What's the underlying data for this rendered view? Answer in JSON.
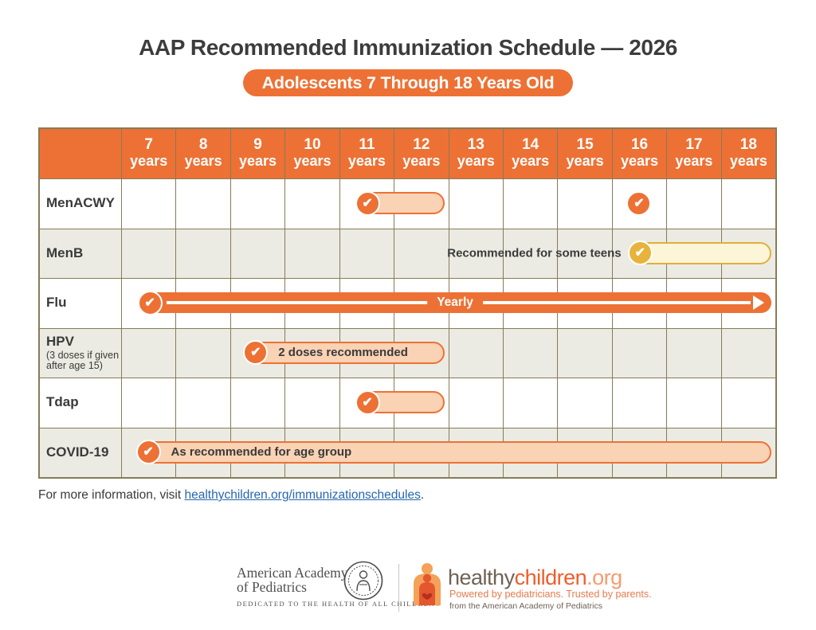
{
  "title": "AAP Recommended Immunization Schedule — 2026",
  "subtitle": "Adolescents 7 Through 18 Years Old",
  "colors": {
    "accent_orange": "#ED7134",
    "pill_fill_orange": "#FAD2B4",
    "pill_fill_yellow": "#FDF5D7",
    "pill_border_yellow": "#E0AF3D",
    "check_yellow": "#E7B33C",
    "row_alt": "#EBEBE3",
    "grid_line": "#877B59",
    "text_dark": "#3A3A3A",
    "link_blue": "#2666AF",
    "hc_brown": "#6F6256",
    "hc_orange": "#F15C2C"
  },
  "schedule": {
    "columns": [
      {
        "num": "7",
        "unit": "years"
      },
      {
        "num": "8",
        "unit": "years"
      },
      {
        "num": "9",
        "unit": "years"
      },
      {
        "num": "10",
        "unit": "years"
      },
      {
        "num": "11",
        "unit": "years"
      },
      {
        "num": "12",
        "unit": "years"
      },
      {
        "num": "13",
        "unit": "years"
      },
      {
        "num": "14",
        "unit": "years"
      },
      {
        "num": "15",
        "unit": "years"
      },
      {
        "num": "16",
        "unit": "years"
      },
      {
        "num": "17",
        "unit": "years"
      },
      {
        "num": "18",
        "unit": "years"
      }
    ],
    "rows": [
      {
        "label": "MenACWY",
        "sub": "",
        "alt": false
      },
      {
        "label": "MenB",
        "sub": "",
        "alt": true
      },
      {
        "label": "Flu",
        "sub": "",
        "alt": false
      },
      {
        "label": "HPV",
        "sub": "(3 doses if given after age 15)",
        "alt": true
      },
      {
        "label": "Tdap",
        "sub": "",
        "alt": false
      },
      {
        "label": "COVID-19",
        "sub": "",
        "alt": true
      }
    ],
    "markers": [
      {
        "name": "menacwy-dose-pill",
        "row": 0,
        "type": "pill",
        "from": 11.32,
        "to": 12.93,
        "style": "orange",
        "text": ""
      },
      {
        "name": "menacwy-16yr-check",
        "row": 0,
        "type": "check",
        "at": 16.5,
        "style": "orange"
      },
      {
        "name": "menb-pill",
        "row": 1,
        "type": "pill",
        "from": 16.32,
        "to": 18.92,
        "style": "yellow",
        "text": "",
        "pre_text": "Recommended for some teens"
      },
      {
        "name": "flu-yearly-bar",
        "row": 2,
        "type": "arrow",
        "from": 7.33,
        "to": 18.92,
        "label": "Yearly"
      },
      {
        "name": "hpv-pill",
        "row": 3,
        "type": "pill",
        "from": 9.27,
        "to": 12.93,
        "style": "orange",
        "text": "2 doses recommended"
      },
      {
        "name": "tdap-pill",
        "row": 4,
        "type": "pill",
        "from": 11.32,
        "to": 12.93,
        "style": "orange",
        "text": ""
      },
      {
        "name": "covid-pill",
        "row": 5,
        "type": "pill",
        "from": 7.3,
        "to": 18.92,
        "style": "orange",
        "text": "As recommended for age group"
      }
    ]
  },
  "footer": {
    "text": "For more information, visit ",
    "link": "healthychildren.org/immunizationschedules",
    "suffix": "."
  },
  "logos": {
    "aap_line1": "American Academy",
    "aap_line2": "of Pediatrics",
    "aap_tagline": "DEDICATED TO THE HEALTH OF ALL CHILDREN®",
    "hc_part1": "healthy",
    "hc_part2": "children",
    "hc_part3": ".org",
    "hc_tagline": "Powered by pediatricians. Trusted by parents.",
    "hc_sub": "from the American Academy of Pediatrics"
  },
  "chart_data": {
    "type": "table",
    "title": "AAP Recommended Immunization Schedule — 2026",
    "subtitle": "Adolescents 7 Through 18 Years Old",
    "x_categories": [
      "7 years",
      "8 years",
      "9 years",
      "10 years",
      "11 years",
      "12 years",
      "13 years",
      "14 years",
      "15 years",
      "16 years",
      "17 years",
      "18 years"
    ],
    "rows": [
      {
        "vaccine": "MenACWY",
        "recommendations": [
          {
            "ages": "11-12",
            "marker": "check-pill"
          },
          {
            "ages": "16",
            "marker": "check"
          }
        ]
      },
      {
        "vaccine": "MenB",
        "recommendations": [
          {
            "ages": "16-18",
            "marker": "check-pill-yellow",
            "note": "Recommended for some teens"
          }
        ]
      },
      {
        "vaccine": "Flu",
        "recommendations": [
          {
            "ages": "7-18",
            "marker": "arrow-bar",
            "note": "Yearly"
          }
        ]
      },
      {
        "vaccine": "HPV (3 doses if given after age 15)",
        "recommendations": [
          {
            "ages": "9-12",
            "marker": "check-pill",
            "note": "2 doses recommended"
          }
        ]
      },
      {
        "vaccine": "Tdap",
        "recommendations": [
          {
            "ages": "11-12",
            "marker": "check-pill"
          }
        ]
      },
      {
        "vaccine": "COVID-19",
        "recommendations": [
          {
            "ages": "7-18",
            "marker": "check-pill",
            "note": "As recommended for age group"
          }
        ]
      }
    ],
    "legend_position": "none",
    "grid": true
  }
}
